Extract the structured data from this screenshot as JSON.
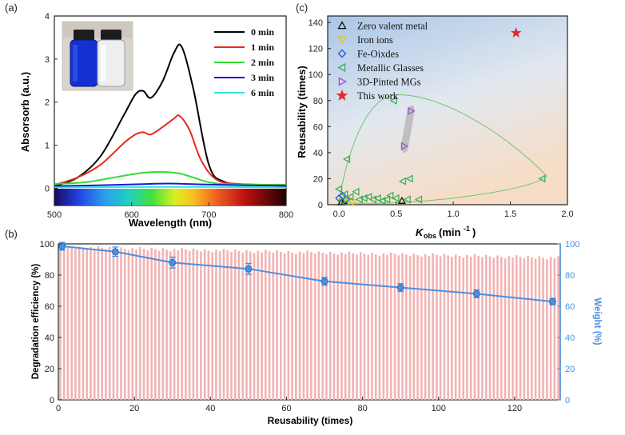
{
  "panels": {
    "a": "(a)",
    "b": "(b)",
    "c": "(c)"
  },
  "chart_data": [
    {
      "type": "line",
      "xlabel": "Wavelength (nm)",
      "ylabel": "Absorsorb (a.u.)",
      "xlim": [
        500,
        800
      ],
      "ylim": [
        -0.4,
        4
      ],
      "xticks": [
        500,
        600,
        700,
        800
      ],
      "yticks": [
        0,
        1,
        2,
        3,
        4
      ],
      "inset": "photo of two vials: blue solution (left) and clear solution (right)",
      "series": [
        {
          "name": "0 min",
          "color": "#000000",
          "x": [
            500,
            530,
            560,
            590,
            605,
            615,
            625,
            640,
            655,
            665,
            680,
            700,
            720,
            760,
            800
          ],
          "y": [
            0.05,
            0.25,
            0.75,
            1.7,
            2.18,
            2.26,
            2.1,
            2.48,
            3.15,
            3.28,
            2.3,
            0.55,
            0.15,
            0.08,
            0.05
          ]
        },
        {
          "name": "1 min",
          "color": "#e8281f",
          "x": [
            500,
            530,
            560,
            590,
            605,
            615,
            625,
            640,
            655,
            662,
            675,
            690,
            710,
            740,
            800
          ],
          "y": [
            0.08,
            0.25,
            0.55,
            1.05,
            1.25,
            1.3,
            1.25,
            1.42,
            1.62,
            1.68,
            1.35,
            0.65,
            0.2,
            0.1,
            0.08
          ]
        },
        {
          "name": "2 min",
          "color": "#33dd33",
          "x": [
            500,
            540,
            580,
            610,
            635,
            660,
            680,
            700,
            730,
            800
          ],
          "y": [
            0.1,
            0.14,
            0.26,
            0.35,
            0.38,
            0.35,
            0.25,
            0.14,
            0.09,
            0.08
          ]
        },
        {
          "name": "3 min",
          "color": "#1a1acc",
          "x": [
            500,
            560,
            620,
            650,
            690,
            740,
            800
          ],
          "y": [
            0.05,
            0.07,
            0.1,
            0.11,
            0.09,
            0.07,
            0.06
          ]
        },
        {
          "name": "6 min",
          "color": "#33e3ea",
          "x": [
            500,
            600,
            700,
            800
          ],
          "y": [
            0.02,
            0.03,
            0.03,
            0.02
          ]
        }
      ]
    },
    {
      "type": "scatter",
      "xlabel": "K_obs (min⁻¹)",
      "ylabel": "Reusability (times)",
      "xlim": [
        -0.1,
        2.0
      ],
      "ylim": [
        0,
        145
      ],
      "xticks": [
        0.0,
        0.5,
        1.0,
        1.5,
        2.0
      ],
      "yticks": [
        0,
        20,
        40,
        60,
        80,
        100,
        120,
        140
      ],
      "series": [
        {
          "name": "Zero valent metal",
          "color": "#111111",
          "marker": "triangle-up",
          "points": [
            [
              0.02,
              2
            ],
            [
              0.05,
              3
            ],
            [
              0.55,
              3
            ]
          ]
        },
        {
          "name": "Iron ions",
          "color": "#f0c020",
          "marker": "triangle-down",
          "points": [
            [
              0.08,
              3
            ],
            [
              0.12,
              2
            ]
          ]
        },
        {
          "name": "Fe-Oixdes",
          "color": "#2255dd",
          "marker": "diamond",
          "points": [
            [
              0.0,
              5
            ],
            [
              0.03,
              7
            ],
            [
              0.06,
              4
            ]
          ]
        },
        {
          "name": "Metallic Glasses",
          "color": "#3caf5a",
          "marker": "triangle-left",
          "points": [
            [
              0.48,
              80
            ],
            [
              0.07,
              35
            ],
            [
              0.45,
              7
            ],
            [
              0.56,
              18
            ],
            [
              0.62,
              20
            ],
            [
              1.78,
              20
            ],
            [
              0.0,
              12
            ],
            [
              0.05,
              8
            ],
            [
              0.1,
              6
            ],
            [
              0.15,
              10
            ],
            [
              0.18,
              4
            ],
            [
              0.22,
              5
            ],
            [
              0.26,
              6
            ],
            [
              0.3,
              4
            ],
            [
              0.34,
              5
            ],
            [
              0.38,
              3
            ],
            [
              0.42,
              4
            ],
            [
              0.5,
              5
            ],
            [
              0.6,
              4
            ],
            [
              0.7,
              4
            ],
            [
              0.02,
              3
            ]
          ]
        },
        {
          "name": "3D-Pinted MGs",
          "color": "#a84fd8",
          "marker": "triangle-right",
          "points": [
            [
              0.57,
              45
            ],
            [
              0.63,
              72
            ]
          ]
        },
        {
          "name": "This work",
          "color": "#e8282a",
          "marker": "star",
          "points": [
            [
              1.55,
              132
            ]
          ]
        }
      ]
    },
    {
      "type": "bar",
      "xlabel": "Reusability (times)",
      "ylabel": "Degradation efficiency (%)",
      "y2label": "Weight (%)",
      "xlim": [
        0,
        132
      ],
      "ylim": [
        0,
        100
      ],
      "xticks": [
        0,
        20,
        40,
        60,
        80,
        100,
        120
      ],
      "yticks": [
        0,
        20,
        40,
        60,
        80,
        100
      ],
      "bar_color": "#f2b3b3",
      "bar_count": 132,
      "efficiency_range": [
        91,
        99
      ],
      "weight_color": "#4a90e2",
      "weight_x": [
        1,
        15,
        30,
        50,
        70,
        90,
        110,
        130
      ],
      "weight_y": [
        98.5,
        95,
        88,
        84,
        76,
        72,
        68,
        63
      ],
      "weight_err": [
        2.5,
        3,
        3.5,
        3.5,
        2.5,
        2.5,
        2.5,
        2
      ]
    }
  ]
}
